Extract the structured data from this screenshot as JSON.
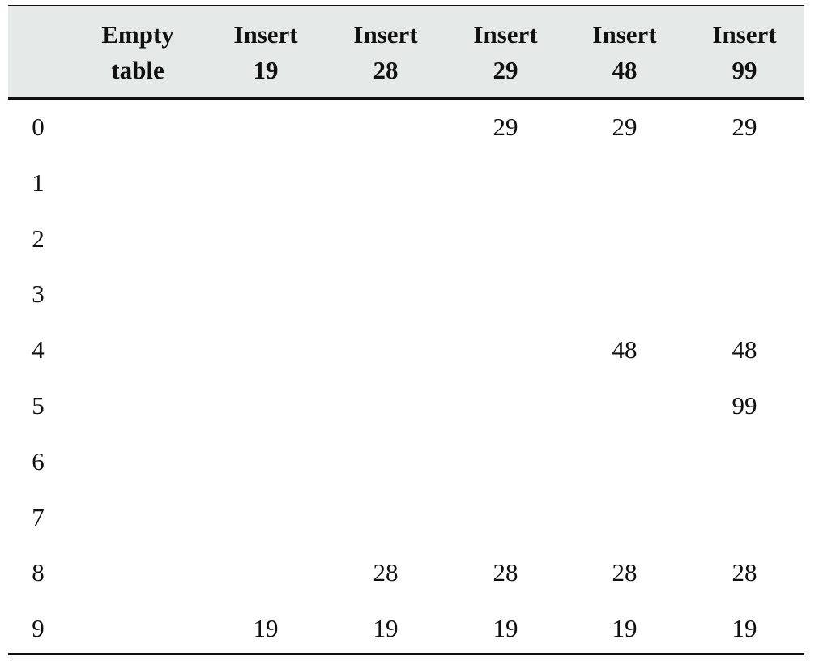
{
  "table": {
    "header": [
      [
        "Empty",
        "table"
      ],
      [
        "Insert",
        "19"
      ],
      [
        "Insert",
        "28"
      ],
      [
        "Insert",
        "29"
      ],
      [
        "Insert",
        "48"
      ],
      [
        "Insert",
        "99"
      ]
    ],
    "rows": [
      {
        "label": "0",
        "cells": [
          null,
          null,
          null,
          "29",
          "29",
          "29"
        ]
      },
      {
        "label": "1",
        "cells": [
          null,
          null,
          null,
          null,
          null,
          null
        ]
      },
      {
        "label": "2",
        "cells": [
          null,
          null,
          null,
          null,
          null,
          null
        ]
      },
      {
        "label": "3",
        "cells": [
          null,
          null,
          null,
          null,
          null,
          null
        ]
      },
      {
        "label": "4",
        "cells": [
          null,
          null,
          null,
          null,
          "48",
          "48"
        ]
      },
      {
        "label": "5",
        "cells": [
          null,
          null,
          null,
          null,
          null,
          "99"
        ]
      },
      {
        "label": "6",
        "cells": [
          null,
          null,
          null,
          null,
          null,
          null
        ]
      },
      {
        "label": "7",
        "cells": [
          null,
          null,
          null,
          null,
          null,
          null
        ]
      },
      {
        "label": "8",
        "cells": [
          null,
          null,
          "28",
          "28",
          "28",
          "28"
        ]
      },
      {
        "label": "9",
        "cells": [
          null,
          "19",
          "19",
          "19",
          "19",
          "19"
        ]
      }
    ]
  }
}
